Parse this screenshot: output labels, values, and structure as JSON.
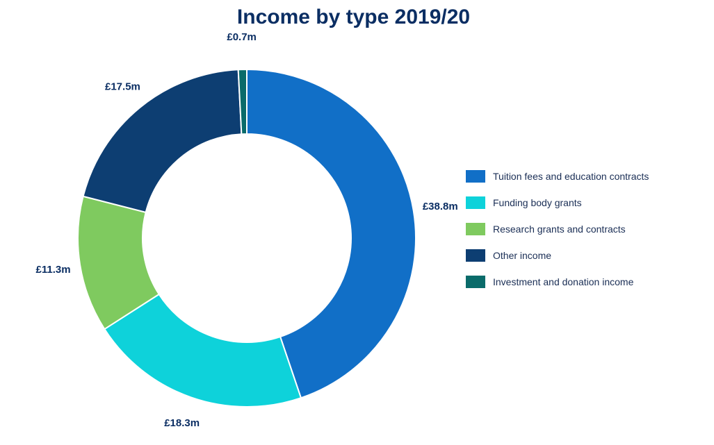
{
  "chart_data": {
    "type": "pie",
    "title": "Income by type 2019/20",
    "donut": true,
    "legend_position": "right",
    "series": [
      {
        "name": "Tuition fees and education contracts",
        "value": 38.8,
        "label": "£38.8m",
        "color": "#116fc7"
      },
      {
        "name": "Funding body grants",
        "value": 18.3,
        "label": "£18.3m",
        "color": "#0ed2da"
      },
      {
        "name": "Research grants and contracts",
        "value": 11.3,
        "label": "£11.3m",
        "color": "#7fca5f"
      },
      {
        "name": "Other income",
        "value": 17.5,
        "label": "£17.5m",
        "color": "#0d3e72"
      },
      {
        "name": "Investment and donation income",
        "value": 0.7,
        "label": "£0.7m",
        "color": "#0a6b6a"
      }
    ]
  }
}
